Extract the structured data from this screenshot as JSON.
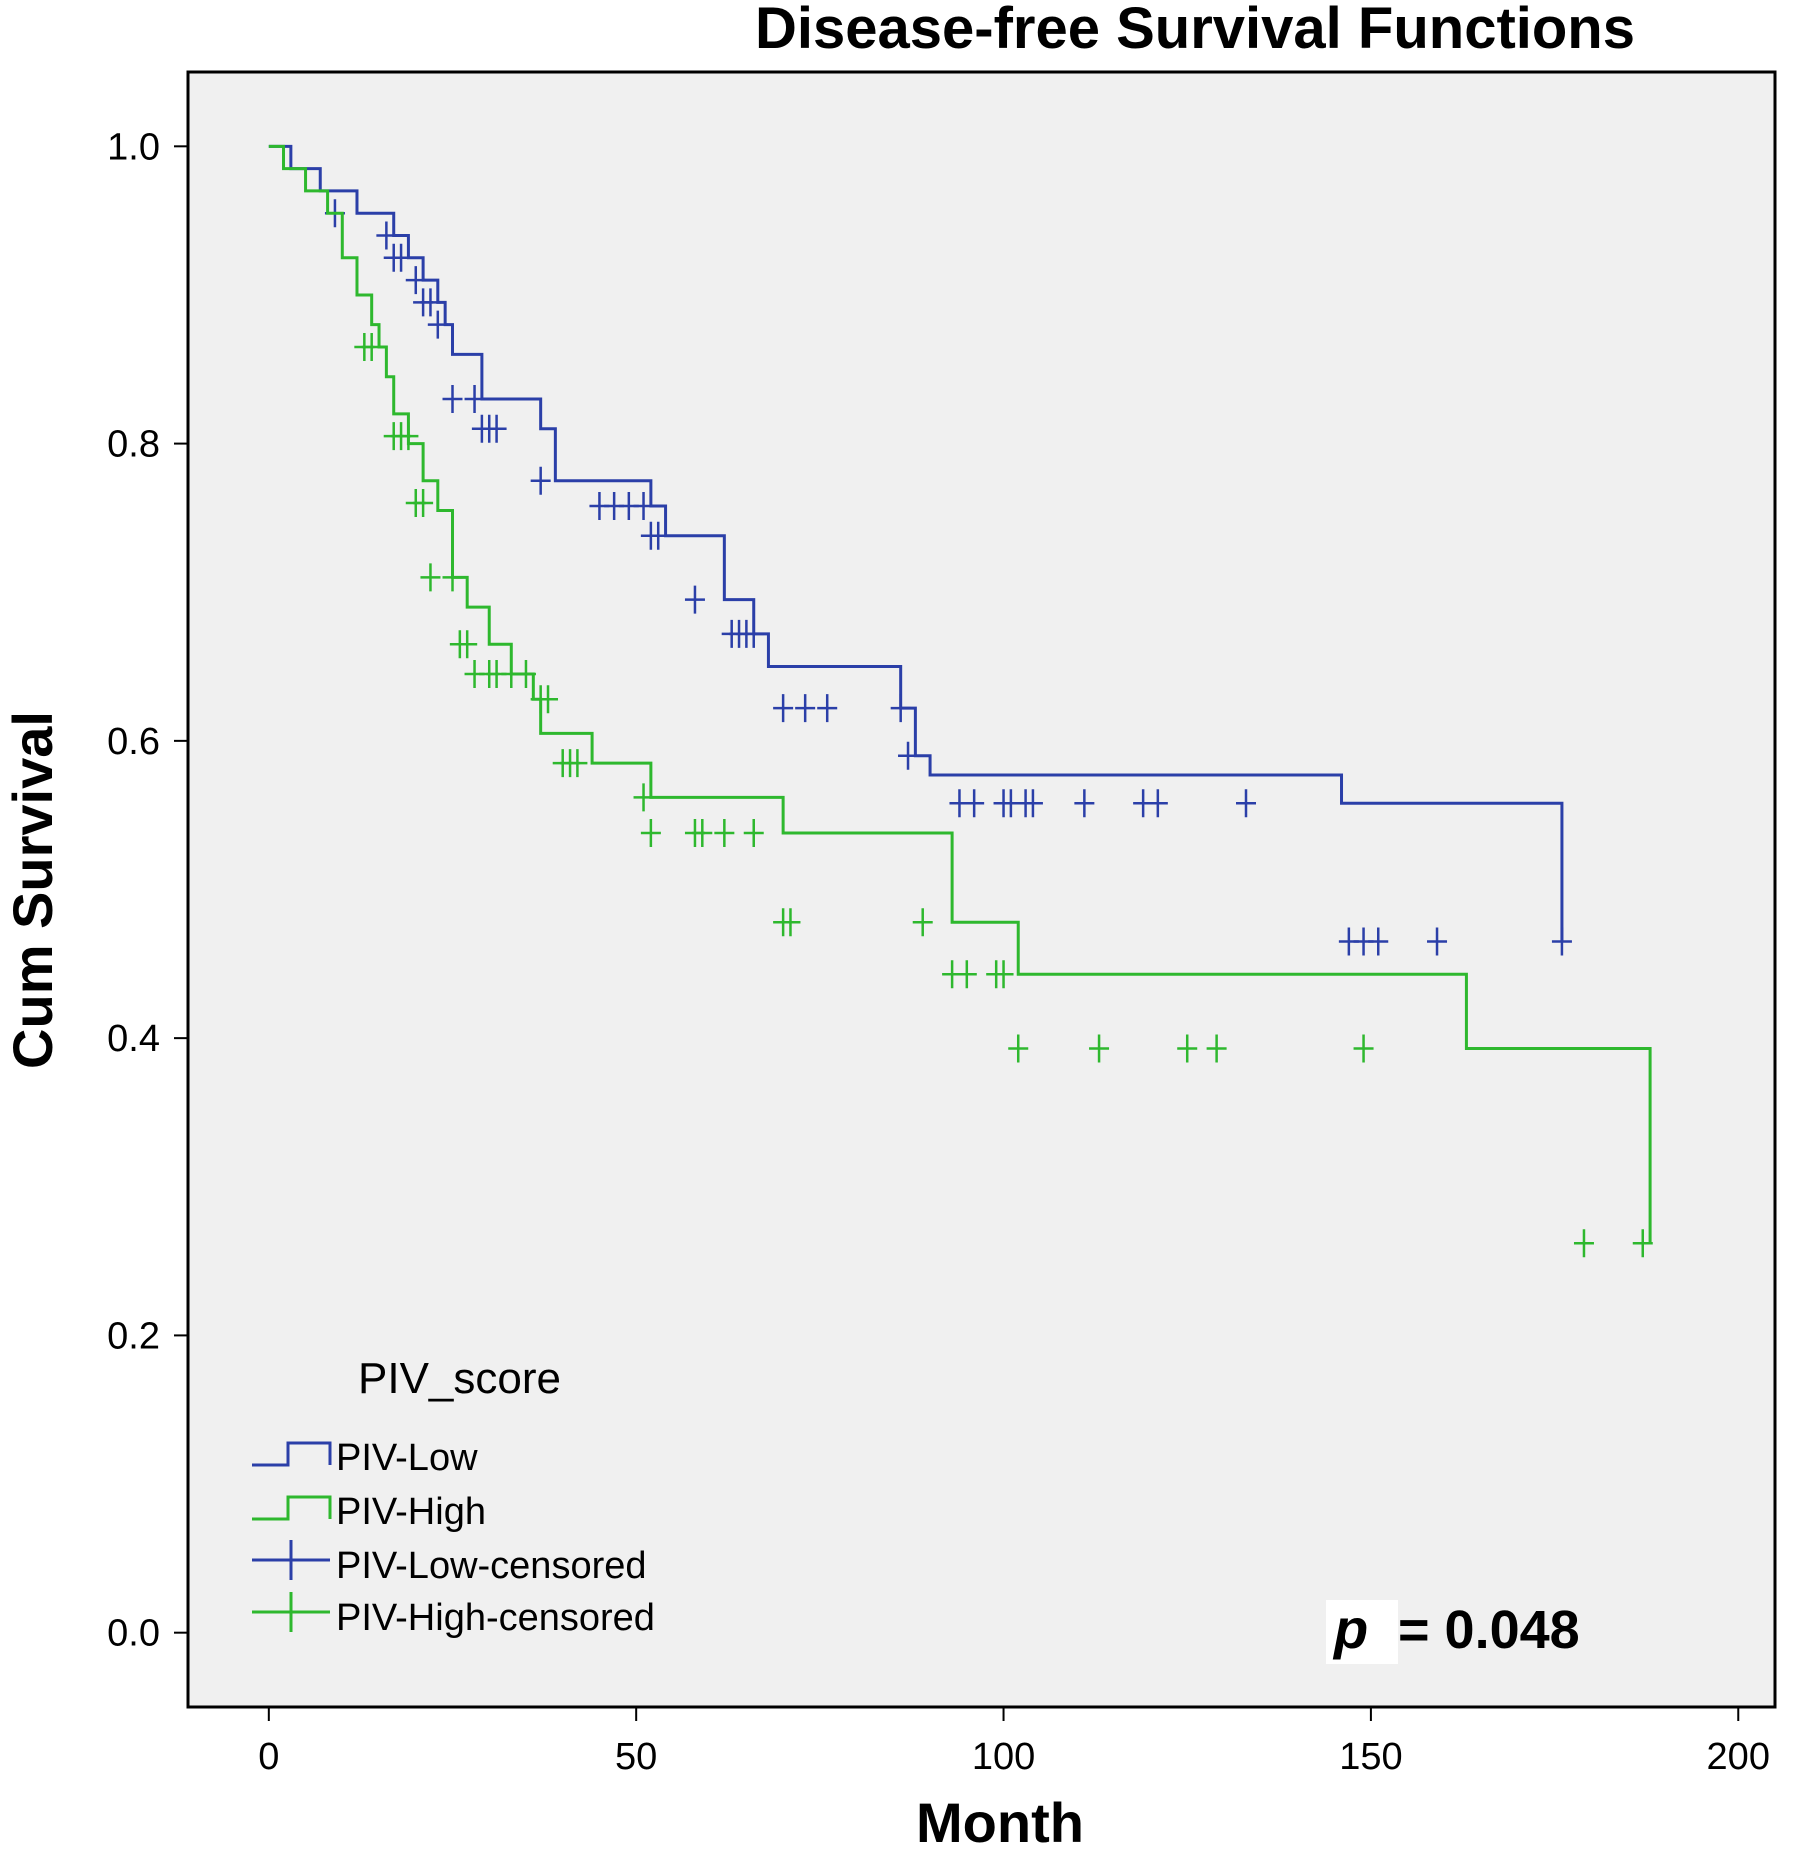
{
  "chart_data": {
    "type": "line",
    "subtype": "kaplan-meier-step",
    "title": "Disease-free Survival Functions",
    "xlabel": "Month",
    "ylabel": "Cum Survival",
    "xlim": [
      -11,
      205
    ],
    "ylim": [
      -0.05,
      1.05
    ],
    "x_ticks": [
      0,
      50,
      100,
      150,
      200
    ],
    "y_ticks": [
      0.0,
      0.2,
      0.4,
      0.6,
      0.8,
      1.0
    ],
    "x_tick_labels": [
      "0",
      "50",
      "100",
      "150",
      "200"
    ],
    "y_tick_labels": [
      "0.0",
      "0.2",
      "0.4",
      "0.6",
      "0.8",
      "1.0"
    ],
    "grid": false,
    "background": "#f0f0f0",
    "legend": {
      "title": "PIV_score",
      "placement": "bottom-left",
      "entries": [
        {
          "label": "PIV-Low",
          "kind": "step",
          "color": "#2b3fa8"
        },
        {
          "label": "PIV-High",
          "kind": "step",
          "color": "#2eb82e"
        },
        {
          "label": "PIV-Low-censored",
          "kind": "censor",
          "color": "#2b3fa8"
        },
        {
          "label": "PIV-High-censored",
          "kind": "censor",
          "color": "#2eb82e"
        }
      ]
    },
    "annotation": {
      "p_symbol": "p",
      "text": "= 0.048",
      "placement": "bottom-right"
    },
    "series": [
      {
        "name": "PIV-Low",
        "color": "#2b3fa8",
        "step_x": [
          0,
          3,
          7,
          12,
          17,
          19,
          21,
          23,
          24,
          25,
          29,
          37,
          39,
          52,
          54,
          62,
          66,
          68,
          86,
          88,
          90,
          146,
          176
        ],
        "step_y": [
          1.0,
          0.985,
          0.97,
          0.955,
          0.94,
          0.925,
          0.91,
          0.895,
          0.88,
          0.86,
          0.83,
          0.81,
          0.775,
          0.758,
          0.738,
          0.695,
          0.672,
          0.65,
          0.622,
          0.59,
          0.577,
          0.558,
          0.465
        ],
        "censored_x": [
          9,
          16,
          17,
          18,
          20,
          21,
          22,
          23,
          25,
          28,
          29,
          30,
          31,
          37,
          45,
          47,
          49,
          51,
          52,
          53,
          58,
          63,
          64,
          65,
          66,
          70,
          73,
          76,
          86,
          87,
          94,
          96,
          100,
          101,
          103,
          104,
          111,
          119,
          121,
          133,
          147,
          149,
          151,
          159,
          176
        ],
        "censored_y": [
          0.955,
          0.94,
          0.925,
          0.925,
          0.91,
          0.895,
          0.895,
          0.88,
          0.83,
          0.83,
          0.81,
          0.81,
          0.81,
          0.775,
          0.758,
          0.758,
          0.758,
          0.758,
          0.738,
          0.738,
          0.695,
          0.672,
          0.672,
          0.672,
          0.672,
          0.622,
          0.622,
          0.622,
          0.622,
          0.59,
          0.558,
          0.558,
          0.558,
          0.558,
          0.558,
          0.558,
          0.558,
          0.558,
          0.558,
          0.558,
          0.465,
          0.465,
          0.465,
          0.465,
          0.465
        ]
      },
      {
        "name": "PIV-High",
        "color": "#2eb82e",
        "step_x": [
          0,
          2,
          5,
          8,
          10,
          12,
          14,
          15,
          16,
          17,
          19,
          21,
          23,
          25,
          27,
          30,
          33,
          36,
          37,
          44,
          52,
          70,
          93,
          102,
          163,
          188
        ],
        "step_y": [
          1.0,
          0.985,
          0.97,
          0.955,
          0.925,
          0.9,
          0.88,
          0.865,
          0.845,
          0.82,
          0.8,
          0.775,
          0.755,
          0.71,
          0.69,
          0.665,
          0.645,
          0.628,
          0.605,
          0.585,
          0.562,
          0.538,
          0.478,
          0.443,
          0.393,
          0.262
        ],
        "censored_x": [
          13,
          14,
          17,
          18,
          19,
          20,
          21,
          22,
          25,
          26,
          27,
          28,
          30,
          31,
          33,
          35,
          37,
          38,
          40,
          41,
          42,
          51,
          52,
          58,
          59,
          62,
          66,
          70,
          71,
          89,
          93,
          95,
          99,
          100,
          102,
          113,
          125,
          129,
          149,
          179,
          187
        ],
        "censored_y": [
          0.865,
          0.865,
          0.805,
          0.805,
          0.805,
          0.76,
          0.76,
          0.71,
          0.71,
          0.665,
          0.665,
          0.645,
          0.645,
          0.645,
          0.645,
          0.645,
          0.628,
          0.628,
          0.585,
          0.585,
          0.585,
          0.562,
          0.538,
          0.538,
          0.538,
          0.538,
          0.538,
          0.478,
          0.478,
          0.478,
          0.443,
          0.443,
          0.443,
          0.443,
          0.393,
          0.393,
          0.393,
          0.393,
          0.393,
          0.262,
          0.262
        ]
      }
    ]
  }
}
